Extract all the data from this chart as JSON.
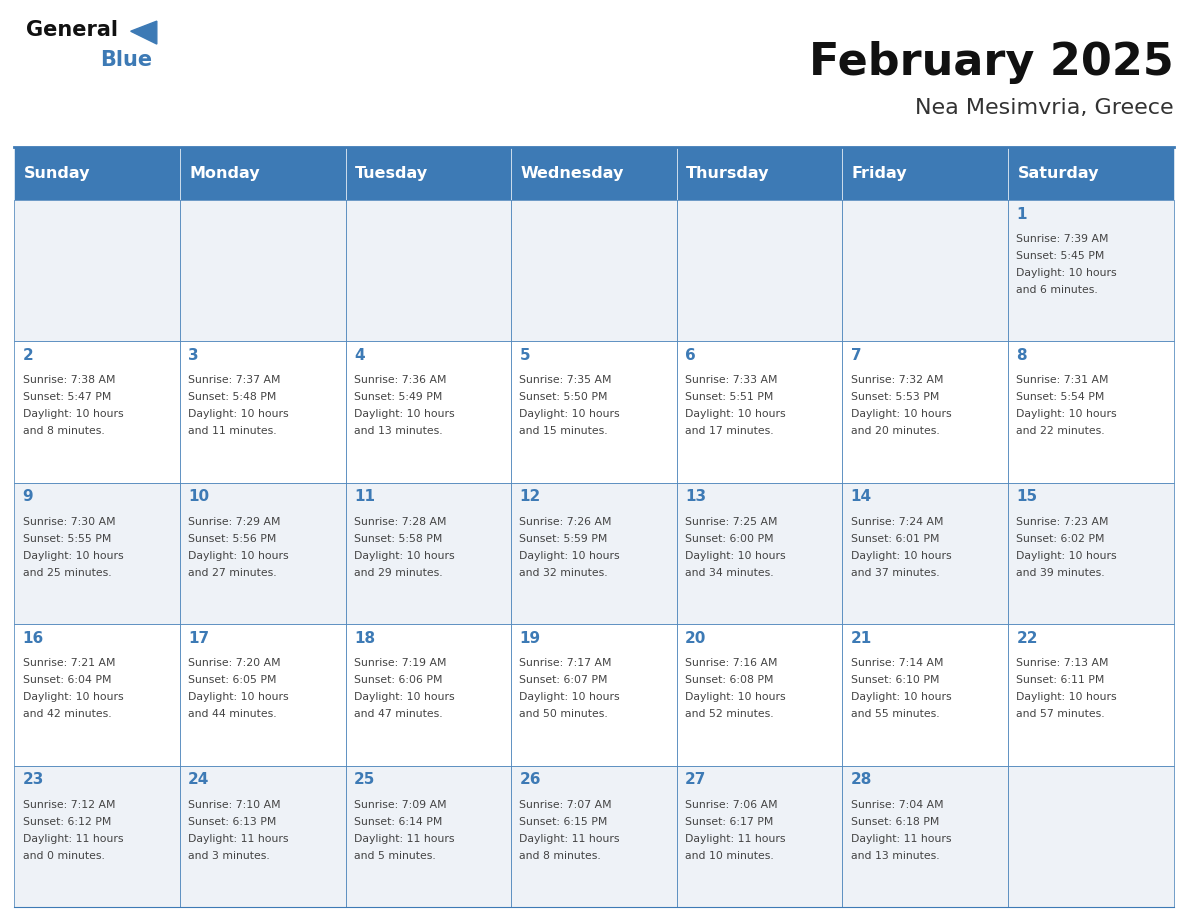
{
  "title": "February 2025",
  "subtitle": "Nea Mesimvria, Greece",
  "days_of_week": [
    "Sunday",
    "Monday",
    "Tuesday",
    "Wednesday",
    "Thursday",
    "Friday",
    "Saturday"
  ],
  "header_bg": "#3d7ab5",
  "header_text": "#ffffff",
  "cell_bg_odd": "#eef2f7",
  "cell_bg_even": "#ffffff",
  "cell_border": "#3d7ab5",
  "day_number_color": "#3d7ab5",
  "info_text_color": "#444444",
  "title_color": "#111111",
  "subtitle_color": "#333333",
  "logo_general_color": "#111111",
  "logo_blue_color": "#3d7ab5",
  "calendar_data": [
    [
      null,
      null,
      null,
      null,
      null,
      null,
      {
        "day": "1",
        "sunrise": "7:39 AM",
        "sunset": "5:45 PM",
        "daylight1": "Daylight: 10 hours",
        "daylight2": "and 6 minutes."
      }
    ],
    [
      {
        "day": "2",
        "sunrise": "7:38 AM",
        "sunset": "5:47 PM",
        "daylight1": "Daylight: 10 hours",
        "daylight2": "and 8 minutes."
      },
      {
        "day": "3",
        "sunrise": "7:37 AM",
        "sunset": "5:48 PM",
        "daylight1": "Daylight: 10 hours",
        "daylight2": "and 11 minutes."
      },
      {
        "day": "4",
        "sunrise": "7:36 AM",
        "sunset": "5:49 PM",
        "daylight1": "Daylight: 10 hours",
        "daylight2": "and 13 minutes."
      },
      {
        "day": "5",
        "sunrise": "7:35 AM",
        "sunset": "5:50 PM",
        "daylight1": "Daylight: 10 hours",
        "daylight2": "and 15 minutes."
      },
      {
        "day": "6",
        "sunrise": "7:33 AM",
        "sunset": "5:51 PM",
        "daylight1": "Daylight: 10 hours",
        "daylight2": "and 17 minutes."
      },
      {
        "day": "7",
        "sunrise": "7:32 AM",
        "sunset": "5:53 PM",
        "daylight1": "Daylight: 10 hours",
        "daylight2": "and 20 minutes."
      },
      {
        "day": "8",
        "sunrise": "7:31 AM",
        "sunset": "5:54 PM",
        "daylight1": "Daylight: 10 hours",
        "daylight2": "and 22 minutes."
      }
    ],
    [
      {
        "day": "9",
        "sunrise": "7:30 AM",
        "sunset": "5:55 PM",
        "daylight1": "Daylight: 10 hours",
        "daylight2": "and 25 minutes."
      },
      {
        "day": "10",
        "sunrise": "7:29 AM",
        "sunset": "5:56 PM",
        "daylight1": "Daylight: 10 hours",
        "daylight2": "and 27 minutes."
      },
      {
        "day": "11",
        "sunrise": "7:28 AM",
        "sunset": "5:58 PM",
        "daylight1": "Daylight: 10 hours",
        "daylight2": "and 29 minutes."
      },
      {
        "day": "12",
        "sunrise": "7:26 AM",
        "sunset": "5:59 PM",
        "daylight1": "Daylight: 10 hours",
        "daylight2": "and 32 minutes."
      },
      {
        "day": "13",
        "sunrise": "7:25 AM",
        "sunset": "6:00 PM",
        "daylight1": "Daylight: 10 hours",
        "daylight2": "and 34 minutes."
      },
      {
        "day": "14",
        "sunrise": "7:24 AM",
        "sunset": "6:01 PM",
        "daylight1": "Daylight: 10 hours",
        "daylight2": "and 37 minutes."
      },
      {
        "day": "15",
        "sunrise": "7:23 AM",
        "sunset": "6:02 PM",
        "daylight1": "Daylight: 10 hours",
        "daylight2": "and 39 minutes."
      }
    ],
    [
      {
        "day": "16",
        "sunrise": "7:21 AM",
        "sunset": "6:04 PM",
        "daylight1": "Daylight: 10 hours",
        "daylight2": "and 42 minutes."
      },
      {
        "day": "17",
        "sunrise": "7:20 AM",
        "sunset": "6:05 PM",
        "daylight1": "Daylight: 10 hours",
        "daylight2": "and 44 minutes."
      },
      {
        "day": "18",
        "sunrise": "7:19 AM",
        "sunset": "6:06 PM",
        "daylight1": "Daylight: 10 hours",
        "daylight2": "and 47 minutes."
      },
      {
        "day": "19",
        "sunrise": "7:17 AM",
        "sunset": "6:07 PM",
        "daylight1": "Daylight: 10 hours",
        "daylight2": "and 50 minutes."
      },
      {
        "day": "20",
        "sunrise": "7:16 AM",
        "sunset": "6:08 PM",
        "daylight1": "Daylight: 10 hours",
        "daylight2": "and 52 minutes."
      },
      {
        "day": "21",
        "sunrise": "7:14 AM",
        "sunset": "6:10 PM",
        "daylight1": "Daylight: 10 hours",
        "daylight2": "and 55 minutes."
      },
      {
        "day": "22",
        "sunrise": "7:13 AM",
        "sunset": "6:11 PM",
        "daylight1": "Daylight: 10 hours",
        "daylight2": "and 57 minutes."
      }
    ],
    [
      {
        "day": "23",
        "sunrise": "7:12 AM",
        "sunset": "6:12 PM",
        "daylight1": "Daylight: 11 hours",
        "daylight2": "and 0 minutes."
      },
      {
        "day": "24",
        "sunrise": "7:10 AM",
        "sunset": "6:13 PM",
        "daylight1": "Daylight: 11 hours",
        "daylight2": "and 3 minutes."
      },
      {
        "day": "25",
        "sunrise": "7:09 AM",
        "sunset": "6:14 PM",
        "daylight1": "Daylight: 11 hours",
        "daylight2": "and 5 minutes."
      },
      {
        "day": "26",
        "sunrise": "7:07 AM",
        "sunset": "6:15 PM",
        "daylight1": "Daylight: 11 hours",
        "daylight2": "and 8 minutes."
      },
      {
        "day": "27",
        "sunrise": "7:06 AM",
        "sunset": "6:17 PM",
        "daylight1": "Daylight: 11 hours",
        "daylight2": "and 10 minutes."
      },
      {
        "day": "28",
        "sunrise": "7:04 AM",
        "sunset": "6:18 PM",
        "daylight1": "Daylight: 11 hours",
        "daylight2": "and 13 minutes."
      },
      null
    ]
  ],
  "num_rows": 5,
  "num_cols": 7,
  "figsize": [
    11.88,
    9.18
  ],
  "dpi": 100
}
